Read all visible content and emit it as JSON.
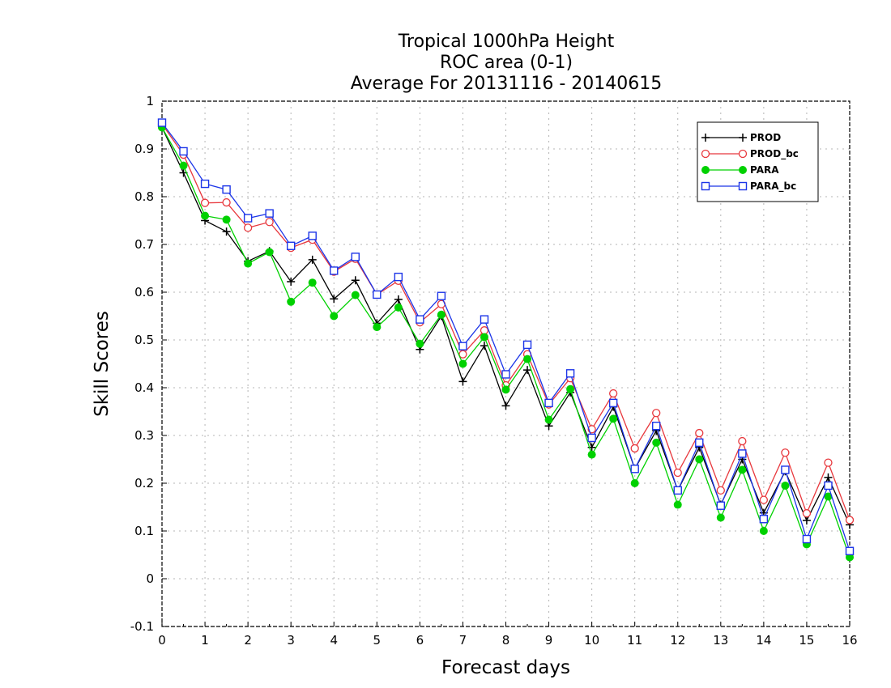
{
  "chart_data": {
    "type": "line",
    "title_lines": [
      "Tropical 1000hPa Height",
      "ROC area (0-1)",
      "Average For 20131116 - 20140615"
    ],
    "xlabel": "Forecast days",
    "ylabel": "Skill Scores",
    "xlim": [
      0,
      16
    ],
    "ylim": [
      -0.1,
      1
    ],
    "x_ticks": [
      0,
      1,
      2,
      3,
      4,
      5,
      6,
      7,
      8,
      9,
      10,
      11,
      12,
      13,
      14,
      15,
      16
    ],
    "y_ticks": [
      -0.1,
      0,
      0.1,
      0.2,
      0.3,
      0.4,
      0.5,
      0.6,
      0.7,
      0.8,
      0.9,
      1
    ],
    "y_tick_labels": [
      "-0.1",
      "0",
      "0.1",
      "0.2",
      "0.3",
      "0.4",
      "0.5",
      "0.6",
      "0.7",
      "0.8",
      "0.9",
      "1"
    ],
    "grid": true,
    "legend_position": "top-right",
    "x": [
      0,
      0.5,
      1,
      1.5,
      2,
      2.5,
      3,
      3.5,
      4,
      4.5,
      5,
      5.5,
      6,
      6.5,
      7,
      7.5,
      8,
      8.5,
      9,
      9.5,
      10,
      10.5,
      11,
      11.5,
      12,
      12.5,
      13,
      13.5,
      14,
      14.5,
      15,
      15.5,
      16
    ],
    "series": [
      {
        "name": "PROD",
        "color": "#000000",
        "marker": "plus",
        "values": [
          0.945,
          0.85,
          0.75,
          0.727,
          0.665,
          0.686,
          0.622,
          0.668,
          0.586,
          0.625,
          0.535,
          0.585,
          0.48,
          0.55,
          0.413,
          0.488,
          0.362,
          0.437,
          0.32,
          0.39,
          0.275,
          0.36,
          0.23,
          0.31,
          0.185,
          0.275,
          0.155,
          0.25,
          0.138,
          0.225,
          0.122,
          0.212,
          0.113
        ]
      },
      {
        "name": "PROD_bc",
        "color": "#e8383d",
        "marker": "circle-open",
        "values": [
          0.952,
          0.888,
          0.787,
          0.788,
          0.735,
          0.747,
          0.693,
          0.71,
          0.643,
          0.67,
          0.595,
          0.624,
          0.537,
          0.575,
          0.47,
          0.52,
          0.405,
          0.47,
          0.365,
          0.42,
          0.313,
          0.388,
          0.273,
          0.347,
          0.222,
          0.305,
          0.185,
          0.288,
          0.165,
          0.264,
          0.137,
          0.243,
          0.123
        ]
      },
      {
        "name": "PARA",
        "color": "#00d100",
        "marker": "circle-filled",
        "values": [
          0.945,
          0.865,
          0.76,
          0.752,
          0.66,
          0.684,
          0.58,
          0.62,
          0.55,
          0.594,
          0.527,
          0.568,
          0.492,
          0.553,
          0.45,
          0.506,
          0.396,
          0.46,
          0.333,
          0.397,
          0.26,
          0.335,
          0.2,
          0.285,
          0.155,
          0.25,
          0.128,
          0.228,
          0.1,
          0.195,
          0.072,
          0.172,
          0.045
        ]
      },
      {
        "name": "PARA_bc",
        "color": "#1c35e8",
        "marker": "square-open",
        "values": [
          0.955,
          0.895,
          0.827,
          0.815,
          0.755,
          0.765,
          0.697,
          0.718,
          0.645,
          0.674,
          0.595,
          0.632,
          0.543,
          0.592,
          0.487,
          0.543,
          0.428,
          0.49,
          0.368,
          0.43,
          0.295,
          0.368,
          0.23,
          0.32,
          0.185,
          0.285,
          0.153,
          0.262,
          0.125,
          0.228,
          0.083,
          0.195,
          0.058
        ]
      }
    ]
  }
}
